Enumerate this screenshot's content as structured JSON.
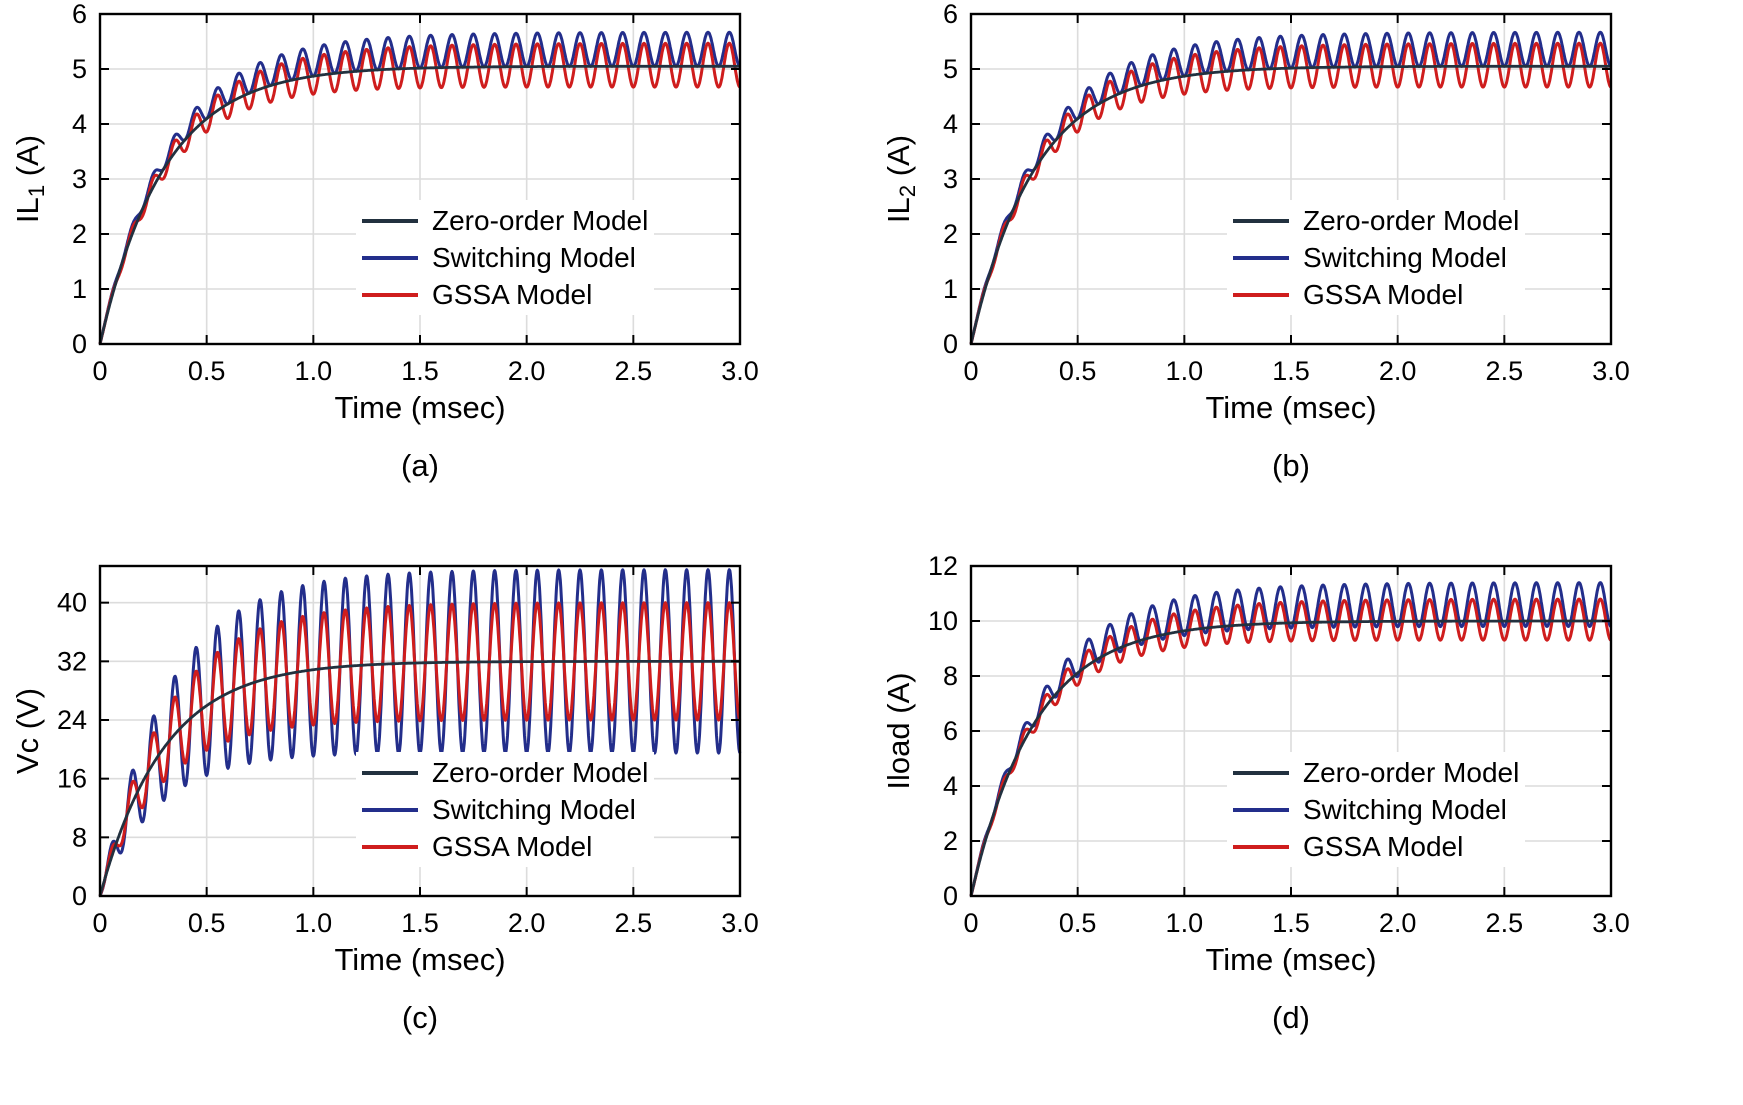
{
  "figure": {
    "background": "#ffffff"
  },
  "colors": {
    "zero_order": "#22313f",
    "switching": "#232e8b",
    "gssa": "#cf1d1d",
    "grid": "#dcdcdc",
    "axis": "#000000"
  },
  "chart_data": [
    {
      "id": "a",
      "type": "line",
      "caption": "(a)",
      "xlabel": "Time (msec)",
      "ylabel": {
        "pre": "IL",
        "sub": "1",
        "post": " (A)"
      },
      "x_range": [
        0,
        3
      ],
      "y_range": [
        0,
        6
      ],
      "x_tick_values": [
        0,
        0.5,
        1.0,
        1.5,
        2.0,
        2.5,
        3.0
      ],
      "x_tick_labels": [
        "0",
        "0.5",
        "1.0",
        "1.5",
        "2.0",
        "2.5",
        "3.0"
      ],
      "y_tick_values": [
        0,
        1,
        2,
        3,
        4,
        5,
        6
      ],
      "y_tick_labels": [
        "0",
        "1",
        "2",
        "3",
        "4",
        "5",
        "6"
      ],
      "grid": true,
      "legend_position": "center-right",
      "series": [
        {
          "name": "Zero-order Model",
          "color_key": "zero_order",
          "width": 2.8,
          "model": {
            "steady": 5.05,
            "tau": 0.3
          }
        },
        {
          "name": "Switching Model",
          "color_key": "switching",
          "width": 3,
          "model": {
            "steady": 5.05,
            "tau": 0.3,
            "ripple_low": 0.0,
            "ripple_high": 0.62,
            "ripple_period": 0.1,
            "ripple_tau": 0.5
          }
        },
        {
          "name": "GSSA Model",
          "color_key": "gssa",
          "width": 3,
          "model": {
            "steady": 5.05,
            "tau": 0.3,
            "ripple_low": -0.38,
            "ripple_high": 0.42,
            "ripple_period": 0.1,
            "ripple_tau": 0.5
          }
        }
      ]
    },
    {
      "id": "b",
      "type": "line",
      "caption": "(b)",
      "xlabel": "Time (msec)",
      "ylabel": {
        "pre": "IL",
        "sub": "2",
        "post": " (A)"
      },
      "x_range": [
        0,
        3
      ],
      "y_range": [
        0,
        6
      ],
      "x_tick_values": [
        0,
        0.5,
        1.0,
        1.5,
        2.0,
        2.5,
        3.0
      ],
      "x_tick_labels": [
        "0",
        "0.5",
        "1.0",
        "1.5",
        "2.0",
        "2.5",
        "3.0"
      ],
      "y_tick_values": [
        0,
        1,
        2,
        3,
        4,
        5,
        6
      ],
      "y_tick_labels": [
        "0",
        "1",
        "2",
        "3",
        "4",
        "5",
        "6"
      ],
      "grid": true,
      "legend_position": "center-right",
      "series": [
        {
          "name": "Zero-order Model",
          "color_key": "zero_order",
          "width": 2.8,
          "model": {
            "steady": 5.05,
            "tau": 0.3
          }
        },
        {
          "name": "Switching Model",
          "color_key": "switching",
          "width": 3,
          "model": {
            "steady": 5.05,
            "tau": 0.3,
            "ripple_low": 0.0,
            "ripple_high": 0.62,
            "ripple_period": 0.1,
            "ripple_tau": 0.5
          }
        },
        {
          "name": "GSSA Model",
          "color_key": "gssa",
          "width": 3,
          "model": {
            "steady": 5.05,
            "tau": 0.3,
            "ripple_low": -0.38,
            "ripple_high": 0.42,
            "ripple_period": 0.1,
            "ripple_tau": 0.5
          }
        }
      ]
    },
    {
      "id": "c",
      "type": "line",
      "caption": "(c)",
      "xlabel": "Time (msec)",
      "ylabel": {
        "pre": "Vc",
        "sub": "",
        "post": " (V)"
      },
      "x_range": [
        0,
        3
      ],
      "y_range": [
        0,
        45
      ],
      "x_tick_values": [
        0,
        0.5,
        1.0,
        1.5,
        2.0,
        2.5,
        3.0
      ],
      "x_tick_labels": [
        "0",
        "0.5",
        "1.0",
        "1.5",
        "2.0",
        "2.5",
        "3.0"
      ],
      "y_tick_values": [
        0,
        8,
        16,
        24,
        32,
        40
      ],
      "y_tick_labels": [
        "0",
        "8",
        "16",
        "24",
        "32",
        "40"
      ],
      "grid": true,
      "legend_position": "center-right",
      "series": [
        {
          "name": "Zero-order Model",
          "color_key": "zero_order",
          "width": 2.8,
          "model": {
            "steady": 32,
            "tau": 0.3
          }
        },
        {
          "name": "Switching Model",
          "color_key": "switching",
          "width": 3,
          "model": {
            "steady": 32,
            "tau": 0.3,
            "ripple_low": -12.5,
            "ripple_high": 12.5,
            "ripple_period": 0.1,
            "ripple_tau": 0.35
          }
        },
        {
          "name": "GSSA Model",
          "color_key": "gssa",
          "width": 3,
          "model": {
            "steady": 32,
            "tau": 0.3,
            "ripple_low": -8,
            "ripple_high": 8,
            "ripple_period": 0.1,
            "ripple_tau": 0.35
          }
        }
      ]
    },
    {
      "id": "d",
      "type": "line",
      "caption": "(d)",
      "xlabel": "Time (msec)",
      "ylabel": {
        "pre": "Iload",
        "sub": "",
        "post": " (A)"
      },
      "x_range": [
        0,
        3
      ],
      "y_range": [
        0,
        12
      ],
      "x_tick_values": [
        0,
        0.5,
        1.0,
        1.5,
        2.0,
        2.5,
        3.0
      ],
      "x_tick_labels": [
        "0",
        "0.5",
        "1.0",
        "1.5",
        "2.0",
        "2.5",
        "3.0"
      ],
      "y_tick_values": [
        0,
        2,
        4,
        6,
        8,
        10,
        12
      ],
      "y_tick_labels": [
        "0",
        "2",
        "4",
        "6",
        "8",
        "10",
        "12"
      ],
      "grid": true,
      "legend_position": "center-right",
      "series": [
        {
          "name": "Zero-order Model",
          "color_key": "zero_order",
          "width": 2.8,
          "model": {
            "steady": 10,
            "tau": 0.3
          }
        },
        {
          "name": "Switching Model",
          "color_key": "switching",
          "width": 3,
          "model": {
            "steady": 10,
            "tau": 0.3,
            "ripple_low": -0.2,
            "ripple_high": 1.4,
            "ripple_period": 0.1,
            "ripple_tau": 0.5
          }
        },
        {
          "name": "GSSA Model",
          "color_key": "gssa",
          "width": 3,
          "model": {
            "steady": 10,
            "tau": 0.3,
            "ripple_low": -0.7,
            "ripple_high": 0.8,
            "ripple_period": 0.1,
            "ripple_tau": 0.5
          }
        }
      ]
    }
  ]
}
